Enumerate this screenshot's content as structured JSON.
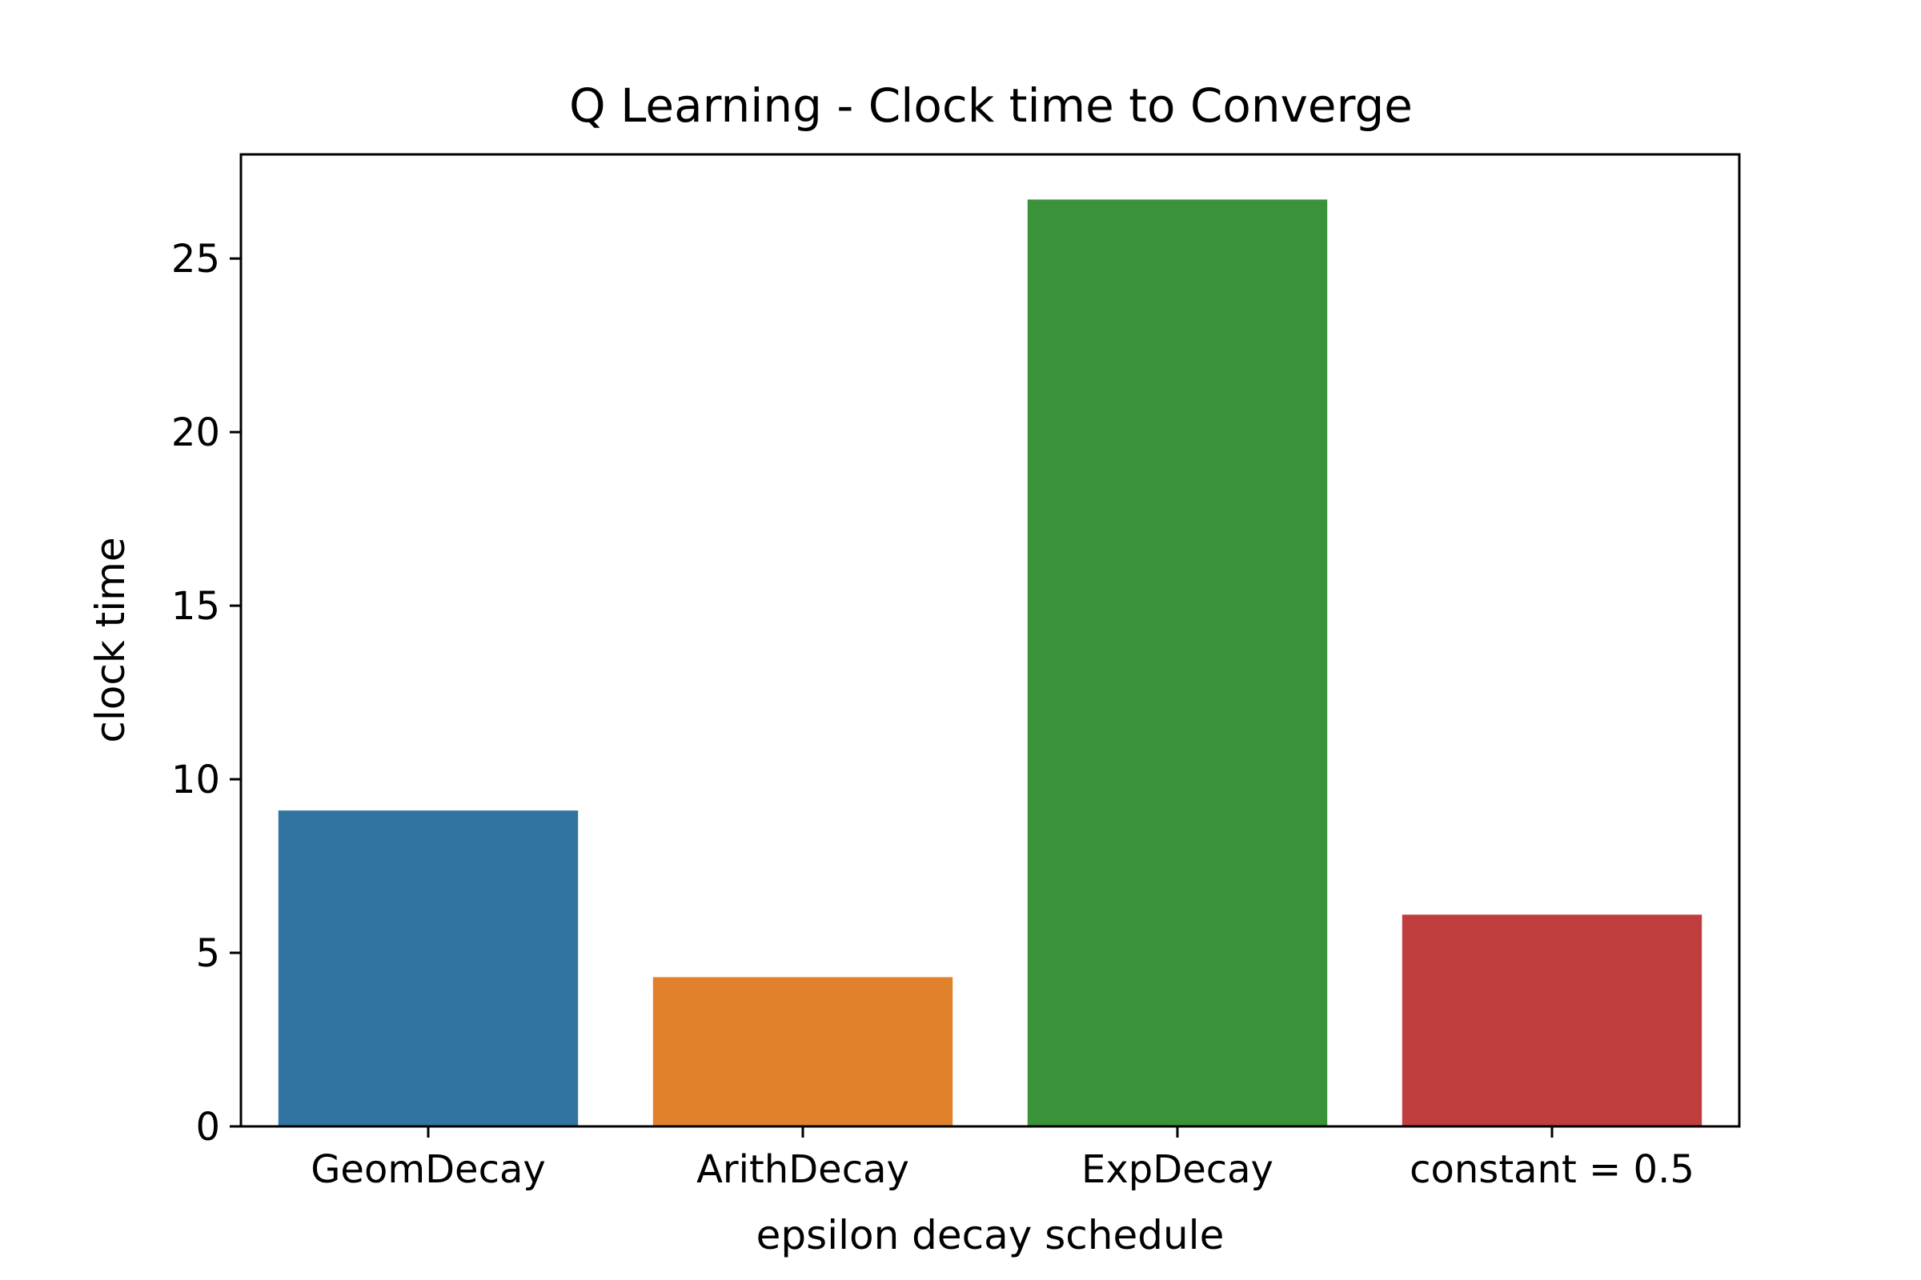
{
  "chart_data": {
    "type": "bar",
    "title": "Q Learning - Clock time to Converge",
    "xlabel": "epsilon decay schedule",
    "ylabel": "clock time",
    "categories": [
      "GeomDecay",
      "ArithDecay",
      "ExpDecay",
      "constant = 0.5"
    ],
    "values": [
      9.1,
      4.3,
      26.7,
      6.1
    ],
    "colors": [
      "#3274a1",
      "#e1812c",
      "#3a923a",
      "#c03d3e"
    ],
    "ylim": [
      0,
      28
    ],
    "yticks": [
      0,
      5,
      10,
      15,
      20,
      25
    ],
    "ytick_labels": [
      "0",
      "5",
      "10",
      "15",
      "20",
      "25"
    ],
    "grid": false,
    "legend": "none"
  }
}
